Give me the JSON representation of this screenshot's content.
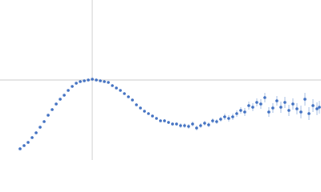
{
  "chart_data": {
    "type": "scatter",
    "x": [
      25,
      30,
      35,
      40,
      45,
      50,
      55,
      60,
      65,
      70,
      75,
      80,
      85,
      90,
      95,
      100,
      105,
      110,
      115,
      120,
      125,
      130,
      135,
      140,
      145,
      150,
      155,
      160,
      165,
      170,
      175,
      180,
      185,
      190,
      195,
      200,
      205,
      210,
      215,
      220,
      225,
      230,
      235,
      240,
      245,
      250,
      255,
      260,
      265,
      270,
      275,
      280,
      285,
      290,
      295,
      300,
      305,
      310,
      315,
      320,
      325,
      330,
      335,
      340,
      345,
      350,
      355,
      360,
      365,
      370,
      375,
      380,
      385,
      390,
      395,
      398
    ],
    "series": [
      {
        "color": "#3a6bbf",
        "error_color": "#a9c0e6",
        "values": [
          14,
          18,
          22,
          28,
          34,
          41,
          48,
          56,
          63,
          70,
          76,
          81,
          87,
          92,
          96,
          98,
          99,
          100,
          101,
          100,
          99,
          98,
          97,
          93,
          90,
          87,
          83,
          79,
          75,
          69,
          65,
          61,
          58,
          55,
          52,
          49,
          49,
          47,
          45,
          45,
          43,
          43,
          42,
          45,
          40,
          43,
          46,
          44,
          49,
          48,
          51,
          54,
          52,
          54,
          58,
          62,
          60,
          68,
          66,
          72,
          70,
          78,
          60,
          65,
          74,
          66,
          72,
          62,
          70,
          64,
          60,
          76,
          58,
          68,
          64,
          66
        ],
        "errors": [
          1,
          1,
          1,
          1,
          1,
          1,
          1,
          1,
          1,
          1,
          1,
          1,
          1,
          1,
          1,
          1,
          1,
          1,
          1,
          1,
          1,
          1,
          1,
          1,
          1,
          1,
          1,
          1,
          1,
          1,
          1,
          1,
          1,
          1,
          1,
          1,
          2,
          2,
          2,
          2,
          3,
          3,
          3,
          3,
          3,
          3,
          3,
          3,
          3,
          3,
          3,
          4,
          4,
          4,
          4,
          4,
          5,
          5,
          5,
          5,
          6,
          6,
          6,
          6,
          6,
          7,
          7,
          7,
          7,
          7,
          8,
          8,
          8,
          8,
          8,
          8
        ]
      }
    ],
    "xlim": [
      0,
      400
    ],
    "ylim": [
      0,
      200
    ],
    "reference_lines": {
      "x": 115,
      "y": 100,
      "color": "#cccccc"
    }
  }
}
